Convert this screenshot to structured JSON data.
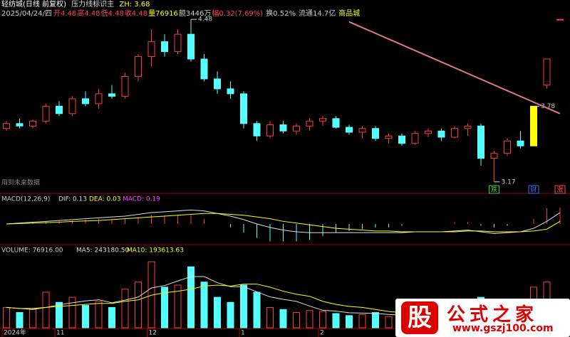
{
  "chart_data": {
    "type": "candlestick",
    "title": "轻纺城(日线 前复权)",
    "indicator": "压力线标识主",
    "zh": "ZH: 3.68",
    "quote": {
      "date": "2025/04/24/四",
      "open": "开4.48",
      "high": "高4.48",
      "low": "低4.48",
      "close": "收4.48",
      "volume": "量76916",
      "amount": "额3446万",
      "change": "幅0.32(7.69%)",
      "turnover": "换0.52%",
      "float": "流通14.7亿",
      "sector": "商品城"
    },
    "note": "用到未来数据",
    "open": [
      3.6,
      3.64,
      3.62,
      3.66,
      3.78,
      3.72,
      3.84,
      3.8,
      3.88,
      3.86,
      4.02,
      4.18,
      4.3,
      4.22,
      4.36,
      4.16,
      4.0,
      3.92,
      3.88,
      3.64,
      3.54,
      3.63,
      3.58,
      3.62,
      3.66,
      3.68,
      3.61,
      3.57,
      3.6,
      3.52,
      3.54,
      3.48,
      3.56,
      3.58,
      3.53,
      3.6,
      3.62,
      3.36,
      3.4,
      3.5,
      3.46,
      3.95,
      4.48
    ],
    "high": [
      3.66,
      3.68,
      3.67,
      3.8,
      3.82,
      3.86,
      3.9,
      3.92,
      3.95,
      4.05,
      4.2,
      4.4,
      4.36,
      4.4,
      4.48,
      4.2,
      4.06,
      3.98,
      3.9,
      3.66,
      3.66,
      3.66,
      3.64,
      3.68,
      3.7,
      3.7,
      3.63,
      3.62,
      3.62,
      3.56,
      3.56,
      3.58,
      3.6,
      3.6,
      3.62,
      3.64,
      3.64,
      3.42,
      3.52,
      3.58,
      3.78,
      4.16,
      4.48
    ],
    "low": [
      3.58,
      3.6,
      3.6,
      3.64,
      3.7,
      3.7,
      3.78,
      3.76,
      3.84,
      3.84,
      3.98,
      4.1,
      4.18,
      4.2,
      4.14,
      3.98,
      3.88,
      3.84,
      3.6,
      3.5,
      3.52,
      3.56,
      3.55,
      3.58,
      3.62,
      3.6,
      3.55,
      3.52,
      3.5,
      3.48,
      3.46,
      3.47,
      3.53,
      3.5,
      3.52,
      3.54,
      3.3,
      3.17,
      3.38,
      3.44,
      3.46,
      3.92,
      4.48
    ],
    "close": [
      3.64,
      3.62,
      3.66,
      3.78,
      3.72,
      3.84,
      3.8,
      3.88,
      3.86,
      4.02,
      4.18,
      4.3,
      4.22,
      4.36,
      4.16,
      4.0,
      3.92,
      3.88,
      3.64,
      3.54,
      3.63,
      3.58,
      3.62,
      3.66,
      3.68,
      3.61,
      3.57,
      3.6,
      3.52,
      3.54,
      3.48,
      3.56,
      3.58,
      3.53,
      3.6,
      3.62,
      3.36,
      3.4,
      3.5,
      3.46,
      3.78,
      4.16,
      4.48
    ],
    "ylim": [
      3.1,
      4.55
    ],
    "price_labels": [
      {
        "index": 14,
        "value": 4.48,
        "label": "4.48"
      },
      {
        "index": 37,
        "value": 3.17,
        "label": "3.17"
      },
      {
        "index": 40,
        "value": 3.78,
        "label": "3.78"
      }
    ],
    "pressure_line": {
      "color": "#e07a7a",
      "from": [
        26,
        4.46
      ],
      "to": [
        42,
        3.72
      ]
    },
    "markers": [
      {
        "index": 37,
        "label": "跌",
        "color": "#4c4"
      },
      {
        "index": 40,
        "label": "财",
        "color": "#46f"
      },
      {
        "index": 42,
        "label": "涨",
        "color": "#f44"
      }
    ],
    "x_labels": [
      {
        "index": 0,
        "label": "2024年"
      },
      {
        "index": 4,
        "label": "11"
      },
      {
        "index": 11,
        "label": "12"
      },
      {
        "index": 18,
        "label": "1"
      },
      {
        "index": 24,
        "label": "2"
      }
    ],
    "up_color": "#ff3c3c",
    "down_color": "#54ffff",
    "limit_color": "#ffff00",
    "macd": {
      "header": "MACD(12,26,9)",
      "dif_label": "DIF: 0.13",
      "dea_label": "DEA: 0.03",
      "macd_label": "MACD: 0.19",
      "ylim": [
        -0.22,
        0.22
      ],
      "dif": [
        0,
        0.01,
        0.02,
        0.03,
        0.04,
        0.05,
        0.06,
        0.07,
        0.08,
        0.09,
        0.11,
        0.13,
        0.14,
        0.15,
        0.16,
        0.15,
        0.12,
        0.09,
        0.05,
        0.0,
        -0.04,
        -0.07,
        -0.09,
        -0.1,
        -0.1,
        -0.1,
        -0.1,
        -0.1,
        -0.1,
        -0.1,
        -0.1,
        -0.09,
        -0.09,
        -0.09,
        -0.08,
        -0.07,
        -0.09,
        -0.11,
        -0.1,
        -0.09,
        -0.05,
        0.03,
        0.13
      ],
      "dea": [
        0,
        0.005,
        0.01,
        0.015,
        0.02,
        0.03,
        0.035,
        0.04,
        0.05,
        0.06,
        0.07,
        0.08,
        0.09,
        0.1,
        0.11,
        0.12,
        0.12,
        0.11,
        0.1,
        0.08,
        0.06,
        0.03,
        0.01,
        -0.01,
        -0.03,
        -0.05,
        -0.06,
        -0.07,
        -0.08,
        -0.08,
        -0.09,
        -0.09,
        -0.09,
        -0.09,
        -0.09,
        -0.08,
        -0.08,
        -0.09,
        -0.09,
        -0.09,
        -0.08,
        -0.06,
        0.03
      ],
      "hist": [
        0,
        0.01,
        0.02,
        0.03,
        0.04,
        0.04,
        0.05,
        0.06,
        0.06,
        0.06,
        0.08,
        0.1,
        0.1,
        0.1,
        0.1,
        0.06,
        0,
        -0.04,
        -0.1,
        -0.16,
        -0.2,
        -0.2,
        -0.2,
        -0.18,
        -0.14,
        -0.1,
        -0.08,
        -0.06,
        -0.04,
        -0.04,
        -0.02,
        0,
        0,
        0,
        0.02,
        0.02,
        -0.02,
        -0.04,
        -0.02,
        0,
        0.06,
        0.18,
        0.19
      ]
    },
    "volume": {
      "header": "VOLUME: 76916.00",
      "ma5_label": "MA5: 243180.50",
      "ma10_label": "MA10: 193613.63",
      "ylim": [
        0,
        700000
      ],
      "values": [
        200000,
        150000,
        180000,
        350000,
        250000,
        300000,
        220000,
        260000,
        200000,
        380000,
        450000,
        650000,
        400000,
        420000,
        600000,
        450000,
        300000,
        250000,
        420000,
        350000,
        200000,
        180000,
        150000,
        170000,
        160000,
        140000,
        120000,
        130000,
        150000,
        110000,
        120000,
        130000,
        100000,
        110000,
        120000,
        110000,
        300000,
        260000,
        150000,
        120000,
        400000,
        450000,
        76916
      ],
      "ma5": [
        200000,
        190000,
        180000,
        200000,
        226000,
        246000,
        264000,
        276000,
        246000,
        272000,
        302000,
        392000,
        416000,
        460000,
        504000,
        504000,
        444000,
        404000,
        404000,
        354000,
        304000,
        280000,
        260000,
        214000,
        172000,
        164000,
        148000,
        144000,
        142000,
        130000,
        126000,
        128000,
        122000,
        118000,
        116000,
        114000,
        148000,
        180000,
        188000,
        188000,
        246000,
        276000,
        243180.5
      ],
      "ma10": [
        200000,
        190000,
        190000,
        200000,
        210000,
        220000,
        230000,
        240000,
        240000,
        260000,
        275000,
        320000,
        345000,
        360000,
        380000,
        410000,
        420000,
        410000,
        430000,
        430000,
        400000,
        360000,
        330000,
        310000,
        260000,
        230000,
        210000,
        200000,
        180000,
        160000,
        150000,
        145000,
        138000,
        130000,
        125000,
        122000,
        132000,
        150000,
        150000,
        152000,
        180000,
        210000,
        193613.63
      ]
    },
    "watermark": {
      "logo": "股",
      "name": "公式之家",
      "url": "www.gszj100.com"
    }
  }
}
